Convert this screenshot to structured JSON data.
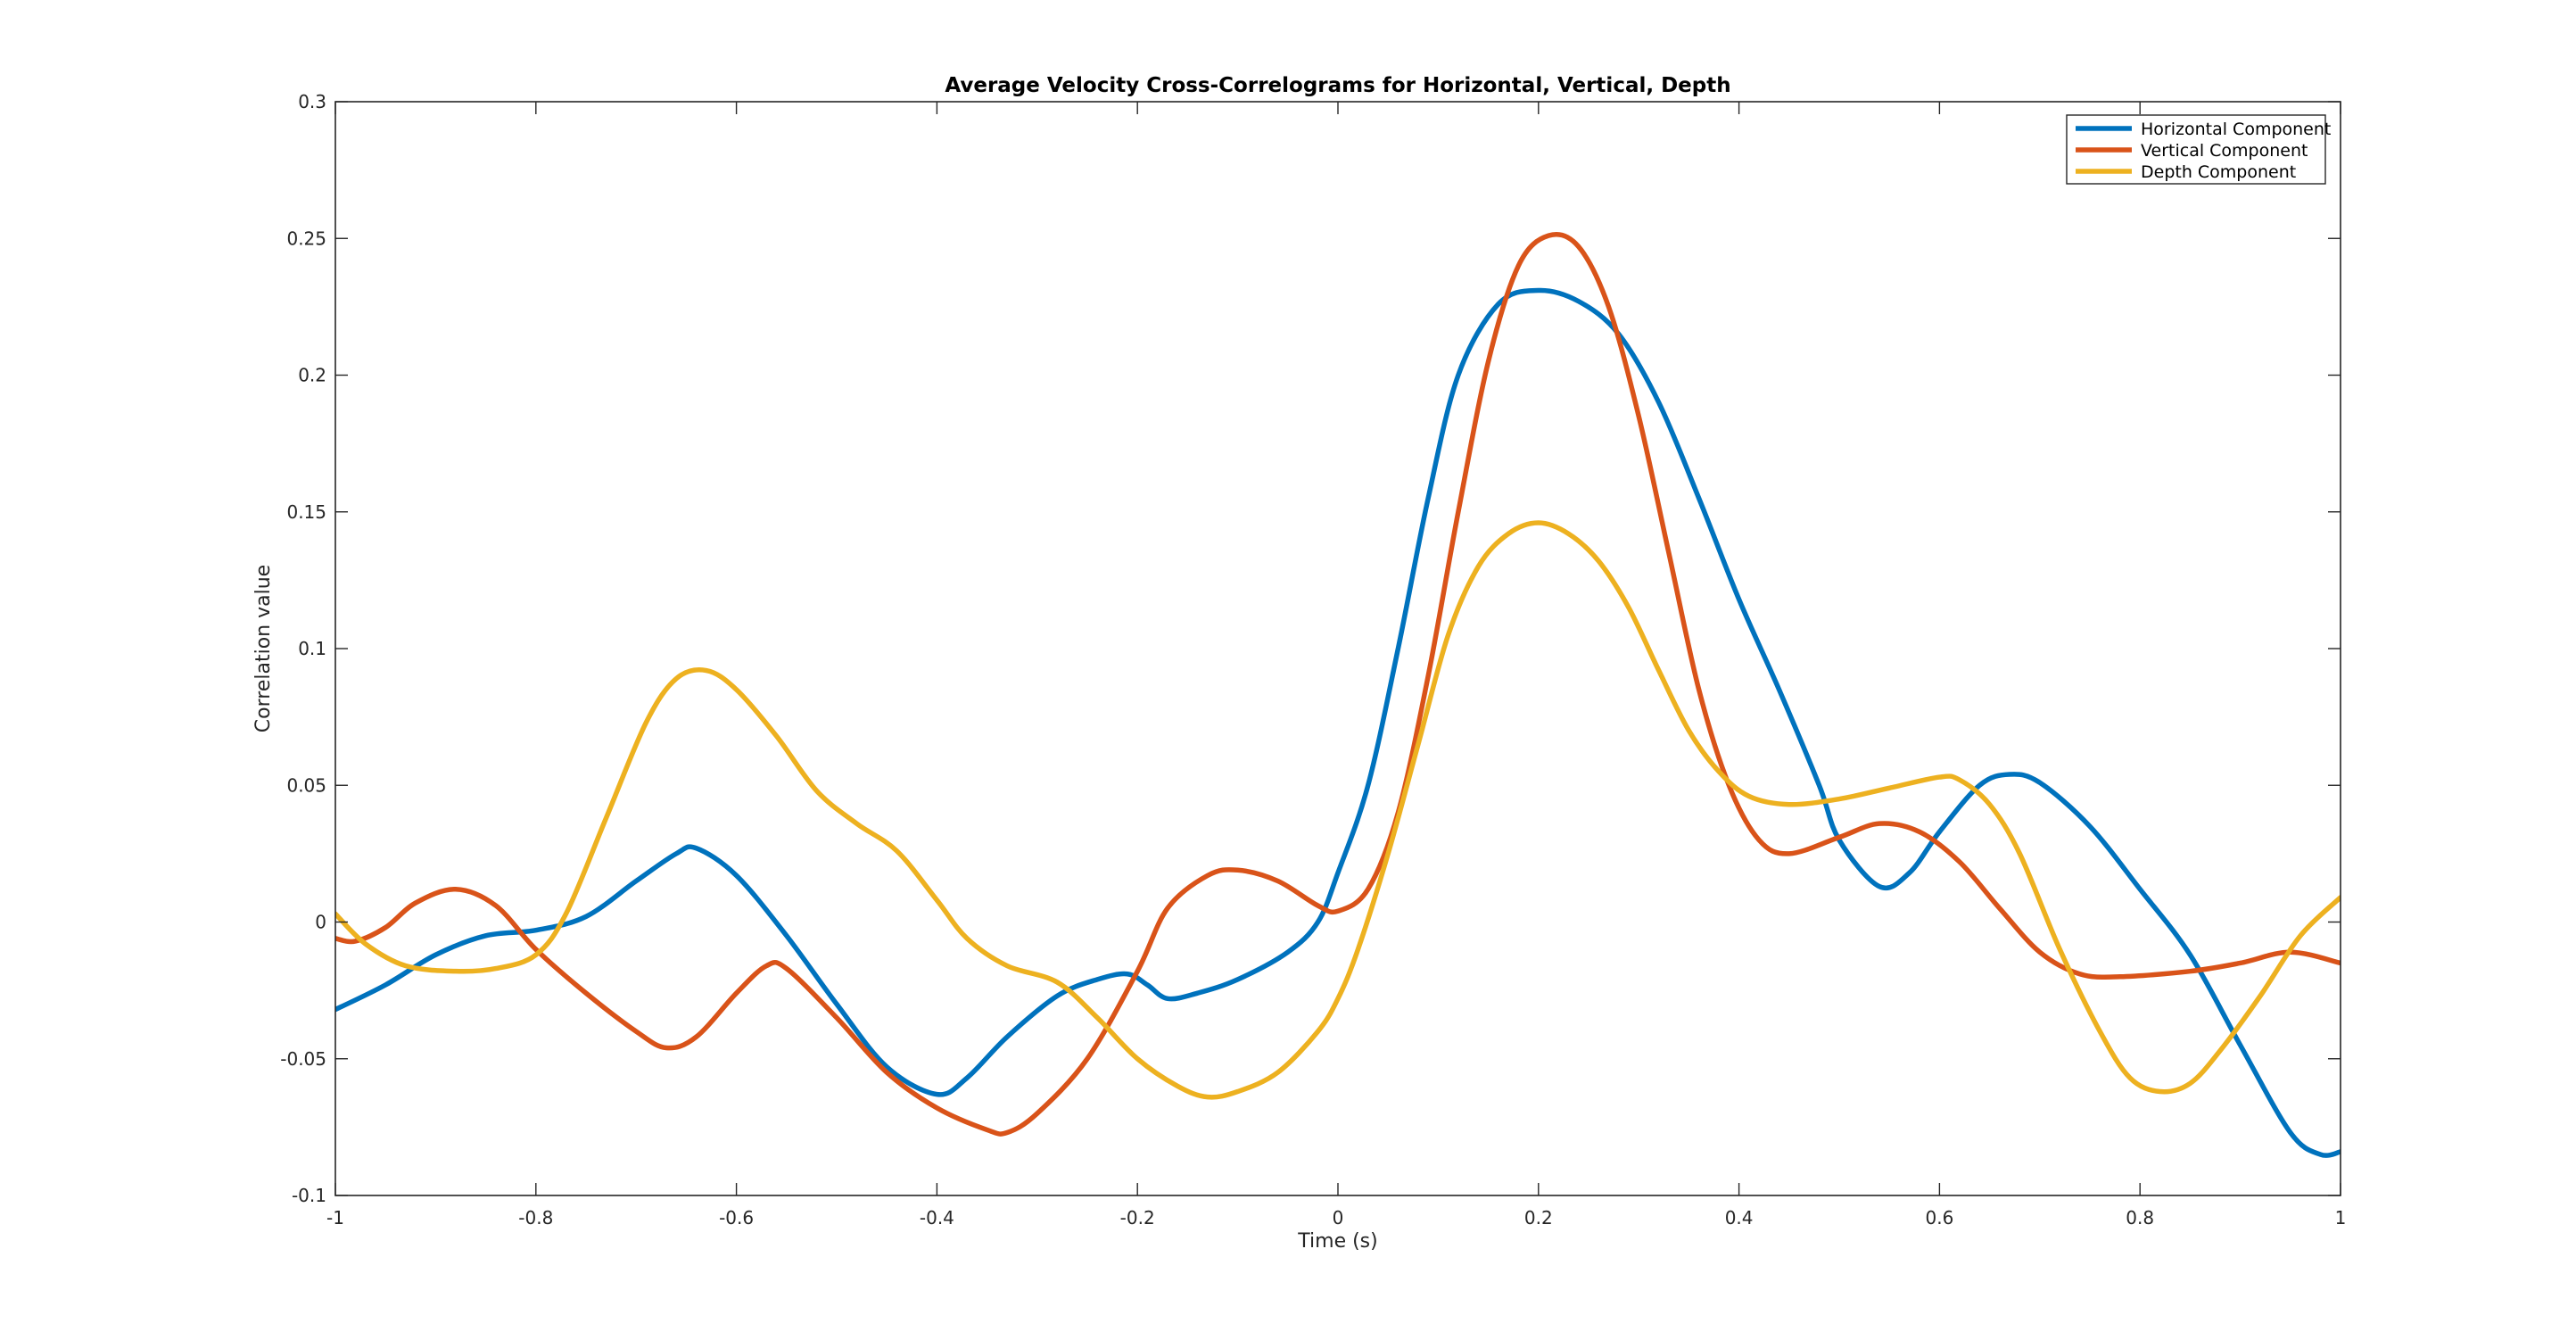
{
  "chart_data": {
    "type": "line",
    "title": "Average Velocity Cross-Correlograms for Horizontal, Vertical, Depth",
    "xlabel": "Time (s)",
    "ylabel": "Correlation value",
    "xlim": [
      -1,
      1
    ],
    "ylim": [
      -0.1,
      0.3
    ],
    "xticks": [
      -1,
      -0.8,
      -0.6,
      -0.4,
      -0.2,
      0,
      0.2,
      0.4,
      0.6,
      0.8,
      1
    ],
    "xtick_labels": [
      "-1",
      "-0.8",
      "-0.6",
      "-0.4",
      "-0.2",
      "0",
      "0.2",
      "0.4",
      "0.6",
      "0.8",
      "1"
    ],
    "yticks": [
      -0.1,
      -0.05,
      0,
      0.05,
      0.1,
      0.15,
      0.2,
      0.25,
      0.3
    ],
    "ytick_labels": [
      "-0.1",
      "-0.05",
      "0",
      "0.05",
      "0.1",
      "0.15",
      "0.2",
      "0.25",
      "0.3"
    ],
    "grid": false,
    "legend_position": "top-right",
    "series": [
      {
        "name": "Horizontal Component",
        "color": "#0072BD",
        "points": [
          [
            -1,
            -0.032
          ],
          [
            -0.95,
            -0.023
          ],
          [
            -0.9,
            -0.012
          ],
          [
            -0.85,
            -0.005
          ],
          [
            -0.8,
            -0.003
          ],
          [
            -0.75,
            0.002
          ],
          [
            -0.7,
            0.015
          ],
          [
            -0.66,
            0.025
          ],
          [
            -0.64,
            0.027
          ],
          [
            -0.6,
            0.017
          ],
          [
            -0.55,
            -0.005
          ],
          [
            -0.5,
            -0.03
          ],
          [
            -0.45,
            -0.053
          ],
          [
            -0.4,
            -0.063
          ],
          [
            -0.37,
            -0.057
          ],
          [
            -0.33,
            -0.042
          ],
          [
            -0.28,
            -0.027
          ],
          [
            -0.24,
            -0.021
          ],
          [
            -0.21,
            -0.019
          ],
          [
            -0.19,
            -0.023
          ],
          [
            -0.17,
            -0.028
          ],
          [
            -0.14,
            -0.026
          ],
          [
            -0.1,
            -0.021
          ],
          [
            -0.05,
            -0.011
          ],
          [
            -0.02,
            0.0
          ],
          [
            0,
            0.018
          ],
          [
            0.03,
            0.05
          ],
          [
            0.06,
            0.1
          ],
          [
            0.09,
            0.155
          ],
          [
            0.12,
            0.2
          ],
          [
            0.16,
            0.226
          ],
          [
            0.2,
            0.231
          ],
          [
            0.24,
            0.227
          ],
          [
            0.28,
            0.215
          ],
          [
            0.32,
            0.19
          ],
          [
            0.36,
            0.155
          ],
          [
            0.4,
            0.118
          ],
          [
            0.44,
            0.085
          ],
          [
            0.48,
            0.05
          ],
          [
            0.5,
            0.03
          ],
          [
            0.54,
            0.013
          ],
          [
            0.57,
            0.018
          ],
          [
            0.6,
            0.033
          ],
          [
            0.64,
            0.05
          ],
          [
            0.67,
            0.054
          ],
          [
            0.7,
            0.051
          ],
          [
            0.75,
            0.035
          ],
          [
            0.8,
            0.012
          ],
          [
            0.85,
            -0.012
          ],
          [
            0.9,
            -0.045
          ],
          [
            0.95,
            -0.077
          ],
          [
            0.98,
            -0.085
          ],
          [
            1,
            -0.084
          ]
        ]
      },
      {
        "name": "Vertical Component",
        "color": "#D95319",
        "points": [
          [
            -1,
            -0.006
          ],
          [
            -0.98,
            -0.007
          ],
          [
            -0.95,
            -0.002
          ],
          [
            -0.92,
            0.007
          ],
          [
            -0.88,
            0.012
          ],
          [
            -0.84,
            0.006
          ],
          [
            -0.8,
            -0.01
          ],
          [
            -0.75,
            -0.026
          ],
          [
            -0.7,
            -0.04
          ],
          [
            -0.67,
            -0.046
          ],
          [
            -0.64,
            -0.042
          ],
          [
            -0.6,
            -0.026
          ],
          [
            -0.57,
            -0.016
          ],
          [
            -0.55,
            -0.017
          ],
          [
            -0.5,
            -0.035
          ],
          [
            -0.45,
            -0.055
          ],
          [
            -0.4,
            -0.068
          ],
          [
            -0.35,
            -0.076
          ],
          [
            -0.33,
            -0.077
          ],
          [
            -0.3,
            -0.07
          ],
          [
            -0.25,
            -0.05
          ],
          [
            -0.2,
            -0.018
          ],
          [
            -0.17,
            0.005
          ],
          [
            -0.13,
            0.017
          ],
          [
            -0.1,
            0.019
          ],
          [
            -0.06,
            0.015
          ],
          [
            -0.02,
            0.006
          ],
          [
            0,
            0.004
          ],
          [
            0.03,
            0.012
          ],
          [
            0.06,
            0.04
          ],
          [
            0.09,
            0.09
          ],
          [
            0.12,
            0.15
          ],
          [
            0.15,
            0.205
          ],
          [
            0.18,
            0.24
          ],
          [
            0.21,
            0.251
          ],
          [
            0.24,
            0.247
          ],
          [
            0.27,
            0.225
          ],
          [
            0.3,
            0.185
          ],
          [
            0.33,
            0.135
          ],
          [
            0.36,
            0.085
          ],
          [
            0.39,
            0.05
          ],
          [
            0.42,
            0.03
          ],
          [
            0.45,
            0.025
          ],
          [
            0.5,
            0.031
          ],
          [
            0.54,
            0.036
          ],
          [
            0.58,
            0.033
          ],
          [
            0.62,
            0.022
          ],
          [
            0.66,
            0.005
          ],
          [
            0.7,
            -0.011
          ],
          [
            0.74,
            -0.019
          ],
          [
            0.78,
            -0.02
          ],
          [
            0.85,
            -0.018
          ],
          [
            0.9,
            -0.015
          ],
          [
            0.95,
            -0.011
          ],
          [
            1,
            -0.015
          ]
        ]
      },
      {
        "name": "Depth Component",
        "color": "#EDB120",
        "points": [
          [
            -1,
            0.003
          ],
          [
            -0.97,
            -0.008
          ],
          [
            -0.93,
            -0.016
          ],
          [
            -0.88,
            -0.018
          ],
          [
            -0.84,
            -0.017
          ],
          [
            -0.8,
            -0.012
          ],
          [
            -0.77,
            0.003
          ],
          [
            -0.73,
            0.038
          ],
          [
            -0.69,
            0.073
          ],
          [
            -0.66,
            0.089
          ],
          [
            -0.63,
            0.092
          ],
          [
            -0.6,
            0.085
          ],
          [
            -0.56,
            0.068
          ],
          [
            -0.52,
            0.048
          ],
          [
            -0.48,
            0.036
          ],
          [
            -0.44,
            0.026
          ],
          [
            -0.4,
            0.008
          ],
          [
            -0.37,
            -0.006
          ],
          [
            -0.33,
            -0.016
          ],
          [
            -0.28,
            -0.022
          ],
          [
            -0.24,
            -0.035
          ],
          [
            -0.2,
            -0.05
          ],
          [
            -0.16,
            -0.06
          ],
          [
            -0.13,
            -0.064
          ],
          [
            -0.1,
            -0.062
          ],
          [
            -0.06,
            -0.055
          ],
          [
            -0.02,
            -0.04
          ],
          [
            0,
            -0.028
          ],
          [
            0.02,
            -0.01
          ],
          [
            0.05,
            0.025
          ],
          [
            0.08,
            0.065
          ],
          [
            0.11,
            0.105
          ],
          [
            0.14,
            0.13
          ],
          [
            0.17,
            0.142
          ],
          [
            0.2,
            0.146
          ],
          [
            0.23,
            0.142
          ],
          [
            0.26,
            0.132
          ],
          [
            0.29,
            0.115
          ],
          [
            0.32,
            0.092
          ],
          [
            0.35,
            0.07
          ],
          [
            0.38,
            0.055
          ],
          [
            0.41,
            0.046
          ],
          [
            0.45,
            0.043
          ],
          [
            0.5,
            0.045
          ],
          [
            0.55,
            0.049
          ],
          [
            0.6,
            0.053
          ],
          [
            0.62,
            0.052
          ],
          [
            0.65,
            0.043
          ],
          [
            0.68,
            0.025
          ],
          [
            0.72,
            -0.01
          ],
          [
            0.76,
            -0.04
          ],
          [
            0.79,
            -0.057
          ],
          [
            0.82,
            -0.062
          ],
          [
            0.85,
            -0.059
          ],
          [
            0.88,
            -0.047
          ],
          [
            0.92,
            -0.027
          ],
          [
            0.96,
            -0.005
          ],
          [
            1,
            0.009
          ]
        ]
      }
    ]
  }
}
